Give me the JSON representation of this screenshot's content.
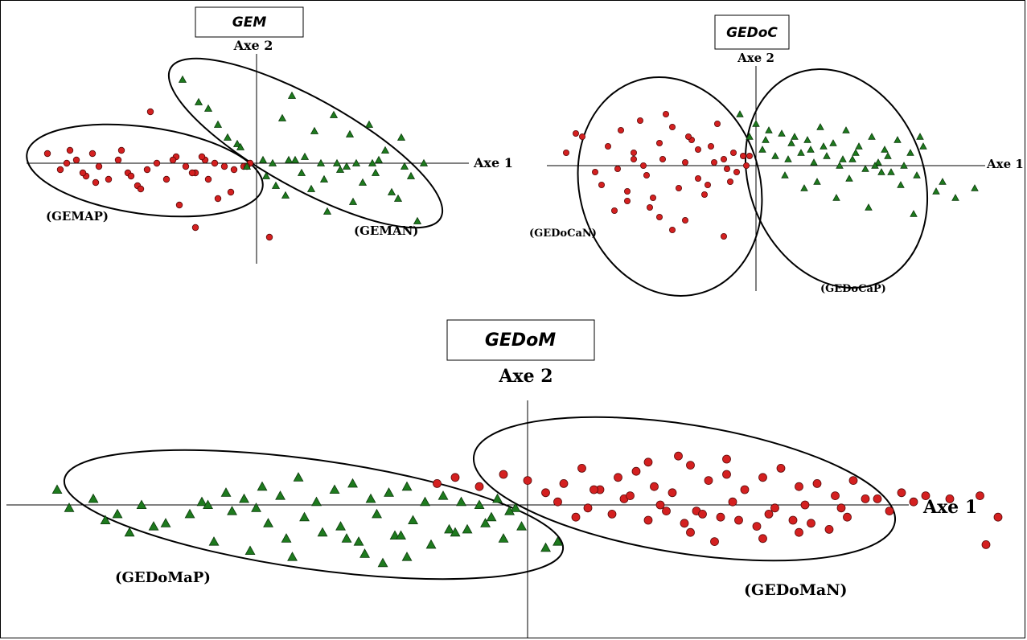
{
  "chart_data": [
    {
      "type": "scatter",
      "title": "GEM",
      "xlabel": "Axe 1",
      "ylabel": "Axe 2",
      "colors": {
        "red": "#d42020",
        "green": "#1e7a1e"
      },
      "xlim": [
        -7,
        6
      ],
      "ylim": [
        -3,
        2.8
      ],
      "groups": [
        {
          "name": "(GEMAP)",
          "marker": "circle",
          "color": "red",
          "x": [
            -6.5,
            -6.1,
            -5.8,
            -5.3,
            -5.6,
            -5.9,
            -5.0,
            -4.6,
            -4.3,
            -4.0,
            -3.7,
            -3.4,
            -3.1,
            -2.8,
            -2.5,
            -2.2,
            -1.9,
            -1.6,
            -1.3,
            -1.0,
            -0.7,
            -0.4,
            -0.2,
            -4.2,
            -3.9,
            -2.0,
            -2.4,
            -1.2,
            -0.8,
            -3.3,
            -5.1,
            -4.9,
            -1.7,
            -1.5,
            -2.6,
            -0.3,
            0.4,
            -1.9,
            -5.4,
            -3.6
          ],
          "y": [
            0.3,
            -0.2,
            0.4,
            -0.4,
            0.1,
            0.0,
            -0.6,
            -0.5,
            0.1,
            -0.3,
            -0.7,
            -0.2,
            0.0,
            -0.5,
            0.2,
            -0.1,
            -0.3,
            0.1,
            0.0,
            -0.1,
            -0.2,
            -0.1,
            0.0,
            0.4,
            -0.4,
            -0.3,
            -1.3,
            -1.1,
            -0.9,
            1.6,
            0.3,
            -0.1,
            0.2,
            -0.5,
            0.1,
            -0.1,
            -2.3,
            -2.0,
            -0.3,
            -0.8
          ]
        },
        {
          "name": "(GEMAN)",
          "marker": "triangle",
          "color": "green",
          "x": [
            -2.3,
            -1.5,
            -0.6,
            0.8,
            1.1,
            1.8,
            2.4,
            2.9,
            3.5,
            4.0,
            4.5,
            1.2,
            0.5,
            -0.3,
            2.0,
            3.1,
            3.8,
            4.6,
            5.2,
            0.3,
            0.6,
            0.9,
            1.4,
            1.7,
            2.1,
            2.6,
            3.0,
            3.3,
            3.7,
            4.2,
            4.8,
            0.2,
            -0.9,
            -1.2,
            2.2,
            2.8,
            1.5,
            3.6,
            5.0,
            -0.5,
            1.0,
            2.5,
            4.4,
            -1.8
          ],
          "y": [
            2.6,
            1.7,
            0.6,
            1.4,
            2.1,
            1.0,
            1.5,
            0.9,
            1.2,
            0.4,
            0.8,
            0.1,
            0.0,
            -0.1,
            0.0,
            0.0,
            0.1,
            -0.1,
            0.0,
            -0.4,
            -0.7,
            -1.0,
            -0.3,
            -0.8,
            -0.5,
            -0.2,
            -1.2,
            -0.6,
            -0.3,
            -0.9,
            -0.4,
            0.1,
            0.8,
            1.2,
            -1.5,
            -0.1,
            0.2,
            0.0,
            -1.8,
            0.5,
            0.1,
            0.0,
            -1.1,
            1.9
          ]
        }
      ]
    },
    {
      "type": "scatter",
      "title": "GEDoC",
      "xlabel": "Axe 1",
      "ylabel": "Axe 2",
      "colors": {
        "red": "#d42020",
        "green": "#1e7a1e"
      },
      "xlim": [
        -7,
        7
      ],
      "ylim": [
        -3.5,
        3.0
      ],
      "groups": [
        {
          "name": "(GEDoCaN)",
          "marker": "circle",
          "color": "red",
          "x": [
            -5.9,
            -5.4,
            -5.0,
            -4.6,
            -4.2,
            -3.8,
            -3.4,
            -3.0,
            -2.6,
            -2.2,
            -1.8,
            -1.4,
            -1.0,
            -0.6,
            -0.3,
            -4.8,
            -4.0,
            -3.2,
            -2.4,
            -1.6,
            -0.8,
            -5.6,
            -3.6,
            -2.8,
            -2.0,
            -1.2,
            -0.4,
            -4.4,
            -3.0,
            -1.0,
            -2.6,
            -2.2,
            -3.8,
            -1.8,
            -4.3,
            -3.5,
            -0.9,
            -1.3,
            -2.9,
            -0.2,
            -4.0,
            -3.3,
            -2.1,
            -1.5,
            -0.7
          ],
          "y": [
            0.4,
            0.9,
            -0.2,
            0.6,
            1.1,
            0.2,
            -0.3,
            0.7,
            1.2,
            0.1,
            -0.4,
            0.6,
            0.2,
            -0.2,
            0.0,
            -0.6,
            -0.8,
            -1.0,
            -0.7,
            -0.9,
            -0.5,
            1.0,
            1.4,
            1.6,
            0.8,
            1.3,
            0.3,
            -1.4,
            -1.6,
            -2.2,
            -2.0,
            -1.7,
            0.4,
            0.5,
            -0.1,
            0.0,
            -0.1,
            0.1,
            0.2,
            0.3,
            -1.1,
            -1.3,
            0.9,
            -0.6,
            0.4
          ]
        },
        {
          "name": "(GEDoCaP)",
          "marker": "triangle",
          "color": "green",
          "x": [
            -0.5,
            0.0,
            0.4,
            0.8,
            1.2,
            1.6,
            2.0,
            2.4,
            2.8,
            3.2,
            3.6,
            4.0,
            4.4,
            4.8,
            5.2,
            0.2,
            0.6,
            1.0,
            1.4,
            1.8,
            2.2,
            2.6,
            3.0,
            3.4,
            3.8,
            4.2,
            4.6,
            5.0,
            5.6,
            6.2,
            6.8,
            1.5,
            2.5,
            3.5,
            4.5,
            0.9,
            1.9,
            2.9,
            3.9,
            4.9,
            0.3,
            1.1,
            2.1,
            3.1,
            4.1,
            5.1,
            5.8,
            -0.2,
            1.7,
            2.7,
            3.7
          ],
          "y": [
            1.6,
            1.3,
            1.1,
            1.0,
            0.9,
            0.8,
            1.2,
            0.7,
            1.1,
            0.6,
            0.9,
            0.5,
            0.8,
            0.4,
            0.6,
            0.5,
            0.3,
            0.2,
            0.4,
            0.1,
            0.3,
            0.0,
            0.2,
            -0.1,
            0.1,
            -0.2,
            0.0,
            -0.3,
            -0.8,
            -1.0,
            -0.7,
            -0.7,
            -1.0,
            -1.3,
            -0.6,
            -0.3,
            -0.5,
            -0.4,
            -0.2,
            -1.5,
            0.8,
            0.7,
            0.6,
            0.4,
            0.3,
            0.9,
            -0.5,
            0.9,
            0.5,
            0.2,
            0.0
          ]
        }
      ]
    },
    {
      "type": "scatter",
      "title": "GEDoM",
      "xlabel": "Axe 1",
      "ylabel": "Axe 2",
      "colors": {
        "red": "#d42020",
        "green": "#1e7a1e"
      },
      "xlim": [
        -9,
        8
      ],
      "ylim": [
        -4.5,
        3.5
      ],
      "groups": [
        {
          "name": "(GEDoMaP)",
          "marker": "triangle",
          "color": "green",
          "x": [
            -7.8,
            -7.6,
            -7.2,
            -6.8,
            -6.4,
            -6.0,
            -5.4,
            -5.0,
            -4.7,
            -4.4,
            -4.1,
            -3.8,
            -3.5,
            -3.2,
            -2.9,
            -2.6,
            -2.3,
            -2.0,
            -1.7,
            -1.4,
            -1.1,
            -0.8,
            -0.5,
            -0.2,
            -7.0,
            -6.2,
            -5.6,
            -4.9,
            -4.3,
            -3.7,
            -3.1,
            -2.5,
            -1.9,
            -1.3,
            -0.7,
            -4.0,
            -3.4,
            -2.8,
            -2.2,
            -1.6,
            -1.0,
            -0.4,
            -5.2,
            -4.6,
            -3.9,
            -2.7,
            -2.1,
            -0.6,
            -0.1,
            0.3,
            0.5,
            -5.3,
            -2.4,
            -2.0,
            -1.2,
            -0.3,
            -6.6,
            -3.0,
            -4.5
          ],
          "y": [
            0.5,
            -0.1,
            0.2,
            -0.3,
            0.0,
            -0.6,
            0.1,
            0.4,
            0.2,
            0.6,
            0.3,
            0.9,
            0.1,
            0.5,
            0.7,
            0.2,
            0.4,
            0.6,
            0.1,
            0.3,
            0.1,
            0.0,
            0.2,
            -0.1,
            -0.5,
            -0.7,
            -0.3,
            -0.2,
            -0.6,
            -0.4,
            -0.7,
            -0.3,
            -0.5,
            -0.8,
            -0.6,
            -1.1,
            -0.9,
            -1.2,
            -1.0,
            -1.3,
            -0.8,
            -1.1,
            -1.2,
            -1.5,
            -1.7,
            -1.6,
            -1.0,
            -0.4,
            -0.7,
            -1.4,
            -1.2,
            0.0,
            -1.9,
            -1.7,
            -0.9,
            -0.2,
            -0.9,
            -1.1,
            -0.1
          ]
        },
        {
          "name": "(GEDoMaN)",
          "marker": "circle",
          "color": "red",
          "x": [
            -1.5,
            -1.2,
            -0.8,
            -0.4,
            0.0,
            0.3,
            0.6,
            0.9,
            1.2,
            1.5,
            1.8,
            2.1,
            2.4,
            2.7,
            3.0,
            3.3,
            3.6,
            3.9,
            4.2,
            4.5,
            4.8,
            5.1,
            5.4,
            5.8,
            6.2,
            6.6,
            0.5,
            1.0,
            1.6,
            2.2,
            2.8,
            3.4,
            4.0,
            4.6,
            5.2,
            5.6,
            6.0,
            0.8,
            1.4,
            2.0,
            2.6,
            3.2,
            3.8,
            4.4,
            5.0,
            1.1,
            1.7,
            2.3,
            2.9,
            3.5,
            4.1,
            4.7,
            5.3,
            6.4,
            7.0,
            2.0,
            2.5,
            3.3,
            4.5,
            7.5,
            7.8,
            3.1,
            3.9,
            2.7,
            7.6
          ],
          "y": [
            0.7,
            0.9,
            0.6,
            1.0,
            0.8,
            0.4,
            0.7,
            1.2,
            0.5,
            0.9,
            1.1,
            0.6,
            0.4,
            1.3,
            0.8,
            1.0,
            0.5,
            0.9,
            1.2,
            0.6,
            0.7,
            0.3,
            0.8,
            0.2,
            0.4,
            0.3,
            0.1,
            -0.1,
            0.2,
            0.0,
            -0.2,
            0.1,
            -0.3,
            0.0,
            -0.1,
            0.2,
            -0.2,
            -0.4,
            -0.3,
            -0.5,
            -0.6,
            -0.4,
            -0.7,
            -0.5,
            -0.8,
            0.5,
            0.3,
            -0.2,
            -0.3,
            -0.5,
            -0.1,
            -0.6,
            -0.4,
            0.1,
            0.2,
            1.4,
            1.6,
            1.5,
            -0.9,
            0.3,
            -0.4,
            -1.2,
            -1.1,
            -0.9,
            -1.3
          ]
        }
      ]
    }
  ]
}
